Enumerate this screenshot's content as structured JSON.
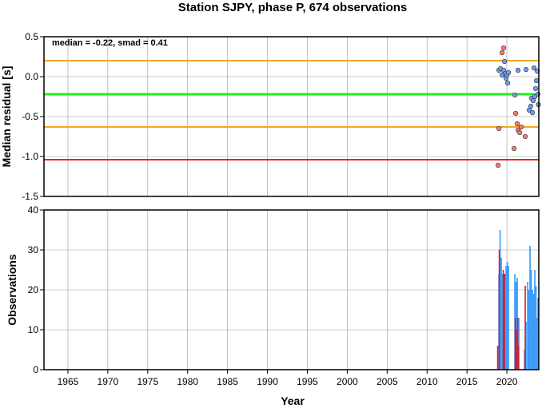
{
  "chart_data": [
    {
      "type": "scatter",
      "title": "Station SJPY, phase P, 674 observations",
      "xlabel": "",
      "ylabel": "Median residual [s]",
      "xlim": [
        1962,
        2024
      ],
      "ylim": [
        -1.5,
        0.5
      ],
      "yticks": [
        "0.5",
        "0.0",
        "-0.5",
        "-1.0",
        "-1.5"
      ],
      "ytick_values": [
        0.5,
        0.0,
        -0.5,
        -1.0,
        -1.5
      ],
      "grid": true,
      "annotation": "median = -0.22, smad = 0.41",
      "reference_lines": [
        {
          "y": 0.2,
          "color": "#f5a623"
        },
        {
          "y": -0.22,
          "color": "#22ee22"
        },
        {
          "y": -0.63,
          "color": "#f5a623"
        },
        {
          "y": -1.04,
          "color": "#ee2222"
        }
      ],
      "series": [
        {
          "color": "#6f9cf5",
          "points": [
            [
              2019.0,
              0.08
            ],
            [
              2019.2,
              0.1
            ],
            [
              2019.4,
              0.02
            ],
            [
              2019.6,
              0.08
            ],
            [
              2019.7,
              0.19
            ],
            [
              2019.8,
              0.04
            ],
            [
              2019.9,
              -0.02
            ],
            [
              2020.0,
              0.02
            ],
            [
              2020.1,
              -0.08
            ],
            [
              2020.2,
              0.05
            ],
            [
              2021.0,
              -0.23
            ],
            [
              2021.4,
              0.08
            ],
            [
              2022.4,
              0.09
            ],
            [
              2022.8,
              -0.42
            ],
            [
              2023.0,
              -0.37
            ],
            [
              2023.1,
              -0.27
            ],
            [
              2023.2,
              -0.45
            ],
            [
              2023.3,
              -0.3
            ],
            [
              2023.4,
              0.11
            ],
            [
              2023.5,
              -0.25
            ],
            [
              2023.6,
              -0.15
            ],
            [
              2023.7,
              -0.05
            ],
            [
              2023.8,
              0.07
            ],
            [
              2023.9,
              -0.22
            ],
            [
              2023.95,
              -0.35
            ]
          ]
        },
        {
          "color": "#f57b6f",
          "points": [
            [
              2018.9,
              -1.11
            ],
            [
              2019.0,
              -0.65
            ],
            [
              2019.4,
              0.3
            ],
            [
              2019.6,
              0.36
            ],
            [
              2020.9,
              -0.9
            ],
            [
              2021.1,
              -0.46
            ],
            [
              2021.3,
              -0.59
            ],
            [
              2021.4,
              -0.67
            ],
            [
              2021.6,
              -0.7
            ],
            [
              2021.8,
              -0.63
            ],
            [
              2022.3,
              -0.75
            ]
          ]
        }
      ]
    },
    {
      "type": "bar",
      "title": "",
      "xlabel": "Year",
      "ylabel": "Observations",
      "xlim": [
        1962,
        2024
      ],
      "ylim": [
        0,
        40
      ],
      "xticks": [
        "1965",
        "1970",
        "1975",
        "1980",
        "1985",
        "1990",
        "1995",
        "2000",
        "2005",
        "2010",
        "2015",
        "2020"
      ],
      "xtick_values": [
        1965,
        1970,
        1975,
        1980,
        1985,
        1990,
        1995,
        2000,
        2005,
        2010,
        2015,
        2020
      ],
      "yticks": [
        "40",
        "30",
        "20",
        "10",
        "0"
      ],
      "ytick_values": [
        40,
        30,
        20,
        10,
        0
      ],
      "grid": true,
      "series": [
        {
          "color": "#3399ff",
          "bars": [
            [
              2019.0,
              24
            ],
            [
              2019.15,
              35
            ],
            [
              2019.3,
              28
            ],
            [
              2019.45,
              24
            ],
            [
              2019.6,
              24
            ],
            [
              2019.75,
              24
            ],
            [
              2019.9,
              26
            ],
            [
              2020.05,
              27
            ],
            [
              2020.2,
              26
            ],
            [
              2021.0,
              24
            ],
            [
              2021.15,
              22
            ],
            [
              2021.3,
              23
            ],
            [
              2021.5,
              13
            ],
            [
              2022.2,
              5
            ],
            [
              2022.4,
              12
            ],
            [
              2022.6,
              22
            ],
            [
              2022.75,
              20
            ],
            [
              2022.9,
              31
            ],
            [
              2023.05,
              25
            ],
            [
              2023.2,
              20
            ],
            [
              2023.35,
              19
            ],
            [
              2023.5,
              25
            ],
            [
              2023.65,
              21
            ],
            [
              2023.8,
              13
            ],
            [
              2023.9,
              18
            ]
          ]
        },
        {
          "color": "#cc2233",
          "bars": [
            [
              2018.85,
              6
            ],
            [
              2019.05,
              30
            ],
            [
              2019.55,
              25
            ],
            [
              2019.7,
              24
            ],
            [
              2021.05,
              13
            ],
            [
              2021.2,
              10
            ],
            [
              2021.35,
              13
            ],
            [
              2021.45,
              6
            ],
            [
              2022.3,
              21
            ]
          ]
        }
      ]
    }
  ]
}
